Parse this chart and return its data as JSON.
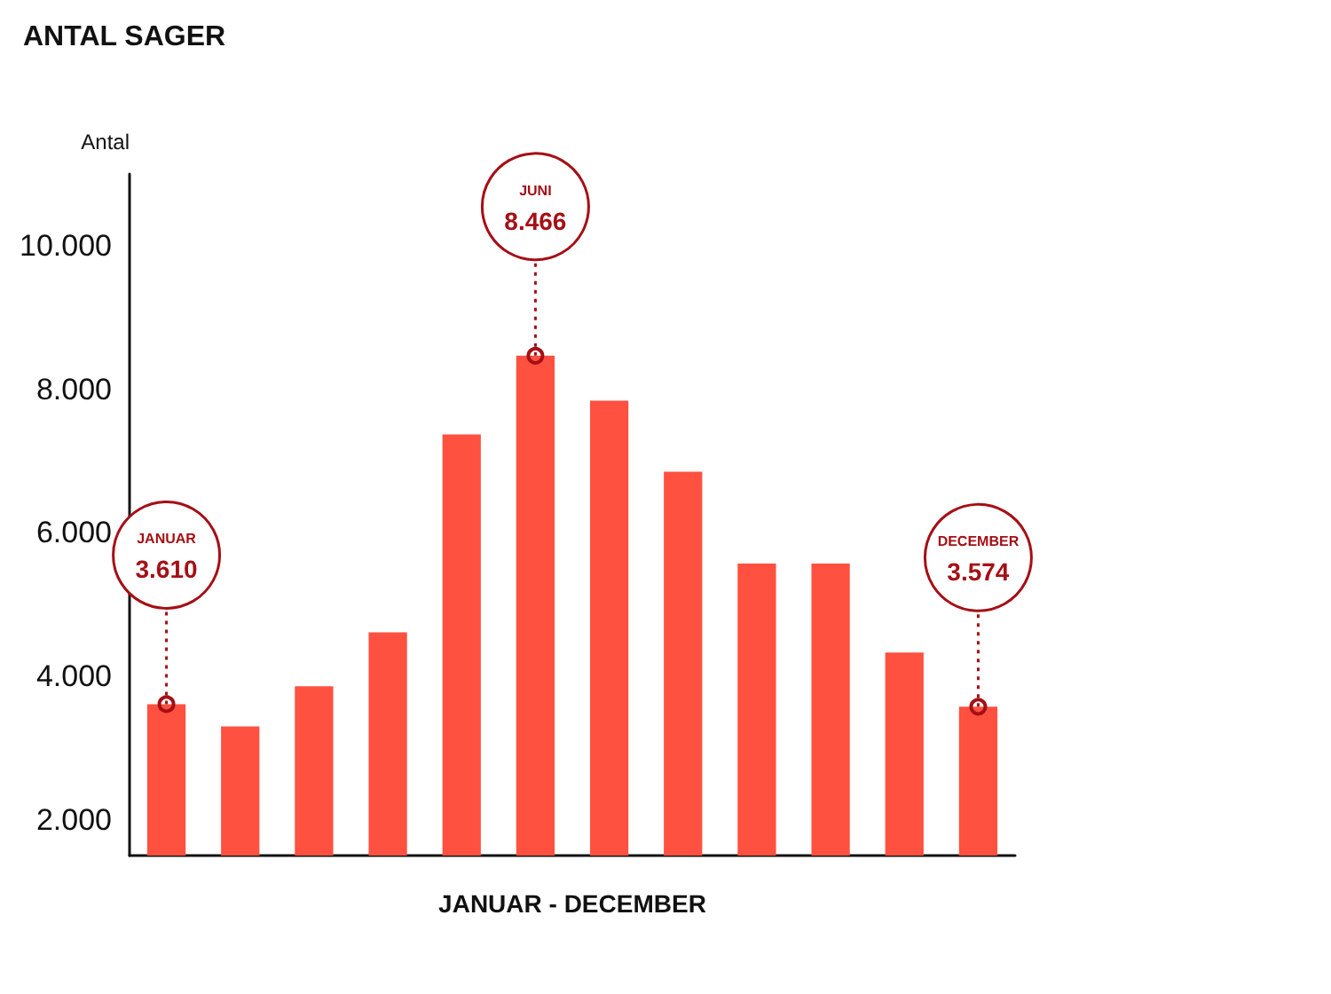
{
  "chart_data": {
    "type": "bar",
    "title": "ANTAL SAGER",
    "ylabel": "Antal",
    "xlabel": "JANUAR - DECEMBER",
    "categories": [
      null,
      null,
      null,
      null,
      null,
      null,
      null,
      null,
      null,
      null,
      null,
      null
    ],
    "values": [
      3610,
      3300,
      3860,
      4610,
      7370,
      8466,
      7840,
      6850,
      5570,
      5570,
      4330,
      3574
    ],
    "color": "#ff5040",
    "value_labels": [
      "JANUAR\n3.610",
      null,
      null,
      null,
      null,
      "JUNI\n8.466",
      null,
      null,
      null,
      null,
      null,
      "DECEMBER\n3.574"
    ],
    "ylim": [
      1500,
      11000
    ],
    "yticks": [
      {
        "value": 2000,
        "label": "2.000"
      },
      {
        "value": 4000,
        "label": "4.000"
      },
      {
        "value": 6000,
        "label": "6.000"
      },
      {
        "value": 8000,
        "label": "8.000"
      },
      {
        "value": 10000,
        "label": "10.000"
      }
    ],
    "grid": false
  }
}
